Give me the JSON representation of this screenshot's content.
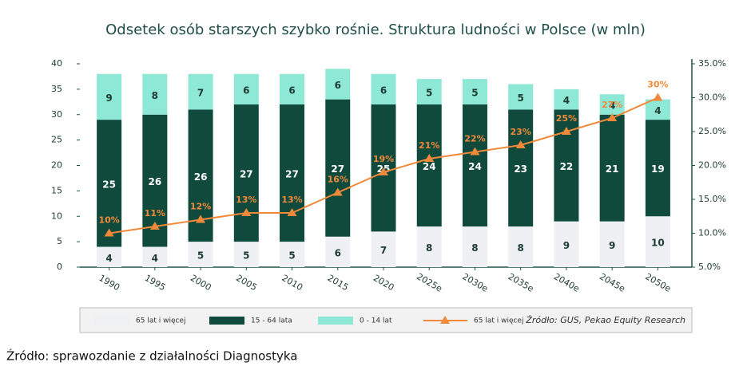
{
  "chart_data": {
    "type": "bar",
    "title": "Odsetek osób starszych szybko rośnie. Struktura ludności w Polsce (w mln)",
    "source": "Źródło: GUS, Pekao Equity Research",
    "caption": "Źródło: sprawozdanie z działalności Diagnostyka",
    "stacked": true,
    "categories": [
      "1990",
      "1995",
      "2000",
      "2005",
      "2010",
      "2015",
      "2020",
      "2025e",
      "2030e",
      "2035e",
      "2040e",
      "2045e",
      "2050e"
    ],
    "series": [
      {
        "name": "65 lat i więcej",
        "color": "#eef0f4",
        "label_color": "#1e3a33",
        "values": [
          4,
          4,
          5,
          5,
          5,
          6,
          7,
          8,
          8,
          8,
          9,
          9,
          10
        ]
      },
      {
        "name": "15 - 64 lata",
        "color": "#0f4a3c",
        "label_color": "#ffffff",
        "values": [
          25,
          26,
          26,
          27,
          27,
          27,
          25,
          24,
          24,
          23,
          22,
          21,
          19
        ]
      },
      {
        "name": "0 - 14 lat",
        "color": "#8de8d6",
        "label_color": "#1e3a33",
        "values": [
          9,
          8,
          7,
          6,
          6,
          6,
          6,
          5,
          5,
          5,
          4,
          4,
          4
        ]
      },
      {
        "name": "65 lat i więcej",
        "type": "line",
        "axis": "y2",
        "color": "#f08a3a",
        "values": [
          10,
          11,
          12,
          13,
          13,
          16,
          19,
          21,
          22,
          23,
          25,
          27,
          30
        ],
        "value_labels": [
          "10%",
          "11%",
          "12%",
          "13%",
          "13%",
          "16%",
          "19%",
          "21%",
          "22%",
          "23%",
          "25%",
          "27%",
          "30%"
        ]
      }
    ],
    "ylim": [
      0,
      40
    ],
    "yticks": [
      0,
      5,
      10,
      15,
      20,
      25,
      30,
      35,
      40
    ],
    "y2lim": [
      5,
      35
    ],
    "y2ticks": [
      {
        "value": 5,
        "label": "5.0%"
      },
      {
        "value": 10,
        "label": "10.0%"
      },
      {
        "value": 15,
        "label": "15.0%"
      },
      {
        "value": 20,
        "label": "20.0%"
      },
      {
        "value": 25,
        "label": "25.0%"
      },
      {
        "value": 30,
        "label": "30.0%"
      },
      {
        "value": 35,
        "label": "35.0%"
      }
    ],
    "grid": false
  }
}
